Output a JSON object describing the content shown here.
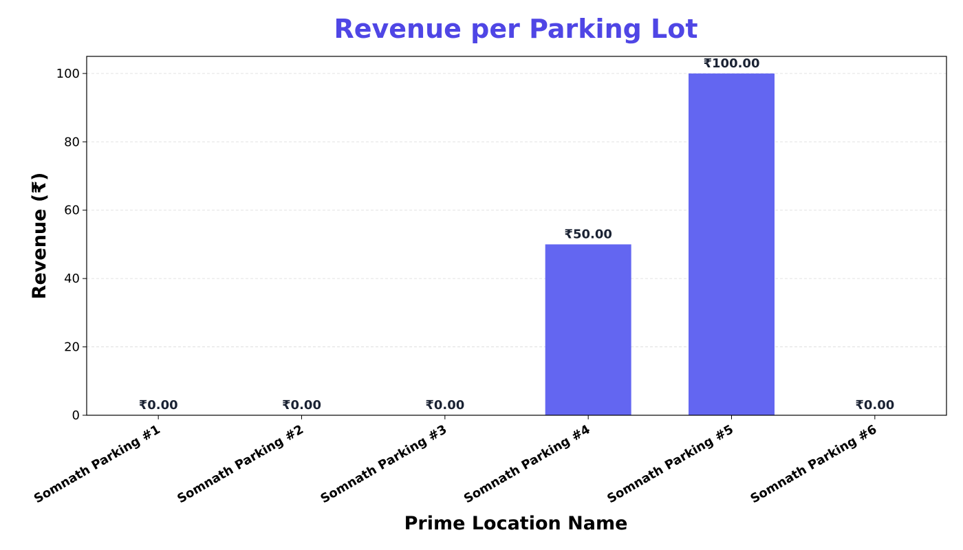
{
  "chart_data": {
    "type": "bar",
    "title": "Revenue per Parking Lot",
    "xlabel": "Prime Location Name",
    "ylabel": "Revenue (₹)",
    "categories": [
      "Somnath Parking #1",
      "Somnath Parking #2",
      "Somnath Parking #3",
      "Somnath Parking #4",
      "Somnath Parking #5",
      "Somnath Parking #6"
    ],
    "values": [
      0,
      0,
      0,
      50,
      100,
      0
    ],
    "data_labels": [
      "₹0.00",
      "₹0.00",
      "₹0.00",
      "₹50.00",
      "₹100.00",
      "₹0.00"
    ],
    "ylim": [
      0,
      105
    ],
    "yticks": [
      0,
      20,
      40,
      60,
      80,
      100
    ],
    "grid": "horizontal dashed",
    "colors": {
      "bar": "#6366f1",
      "title": "#4f46e5",
      "data_label": "#1a2233"
    }
  }
}
